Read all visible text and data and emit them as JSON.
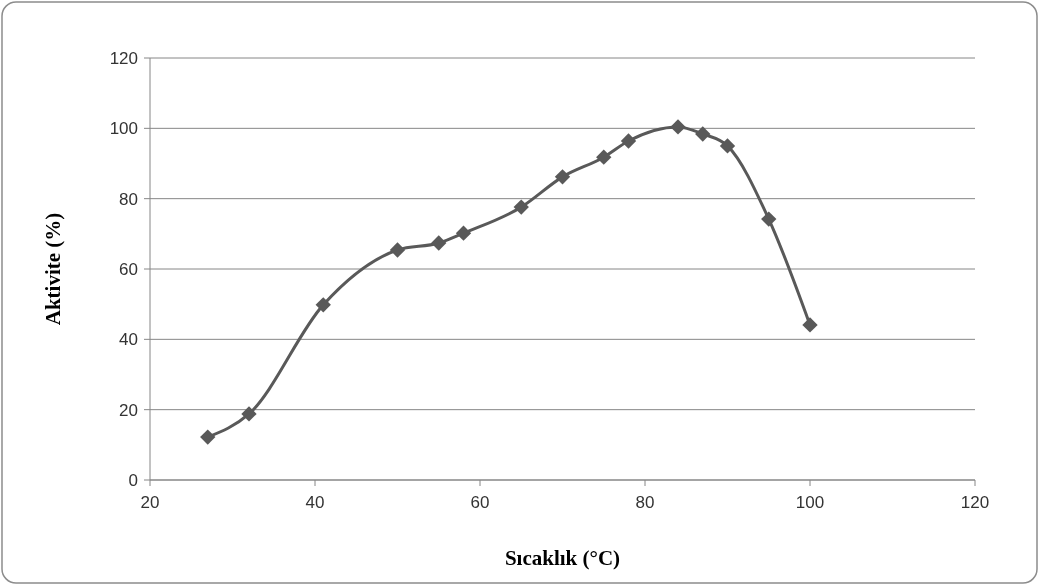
{
  "chart_data": {
    "type": "line",
    "xlabel": "Sıcaklık (°C)",
    "ylabel": "Aktivite (%)",
    "x": [
      27,
      32,
      41,
      50,
      55,
      58,
      65,
      70,
      75,
      78,
      84,
      87,
      90,
      95,
      100
    ],
    "series": [
      {
        "color": "#595959",
        "values": [
          12.2,
          18.8,
          49.8,
          65.4,
          67.4,
          70.2,
          77.6,
          86.2,
          91.8,
          96.4,
          100.4,
          98.4,
          95,
          74.2,
          44.1
        ]
      }
    ],
    "xlim": [
      20,
      120
    ],
    "xticks": [
      20,
      40,
      60,
      80,
      100,
      120
    ],
    "ylim": [
      0,
      120
    ],
    "yticks": [
      0,
      20,
      40,
      60,
      80,
      100,
      120
    ],
    "grid": "y",
    "marker": "diamond",
    "line_style": "solid"
  }
}
